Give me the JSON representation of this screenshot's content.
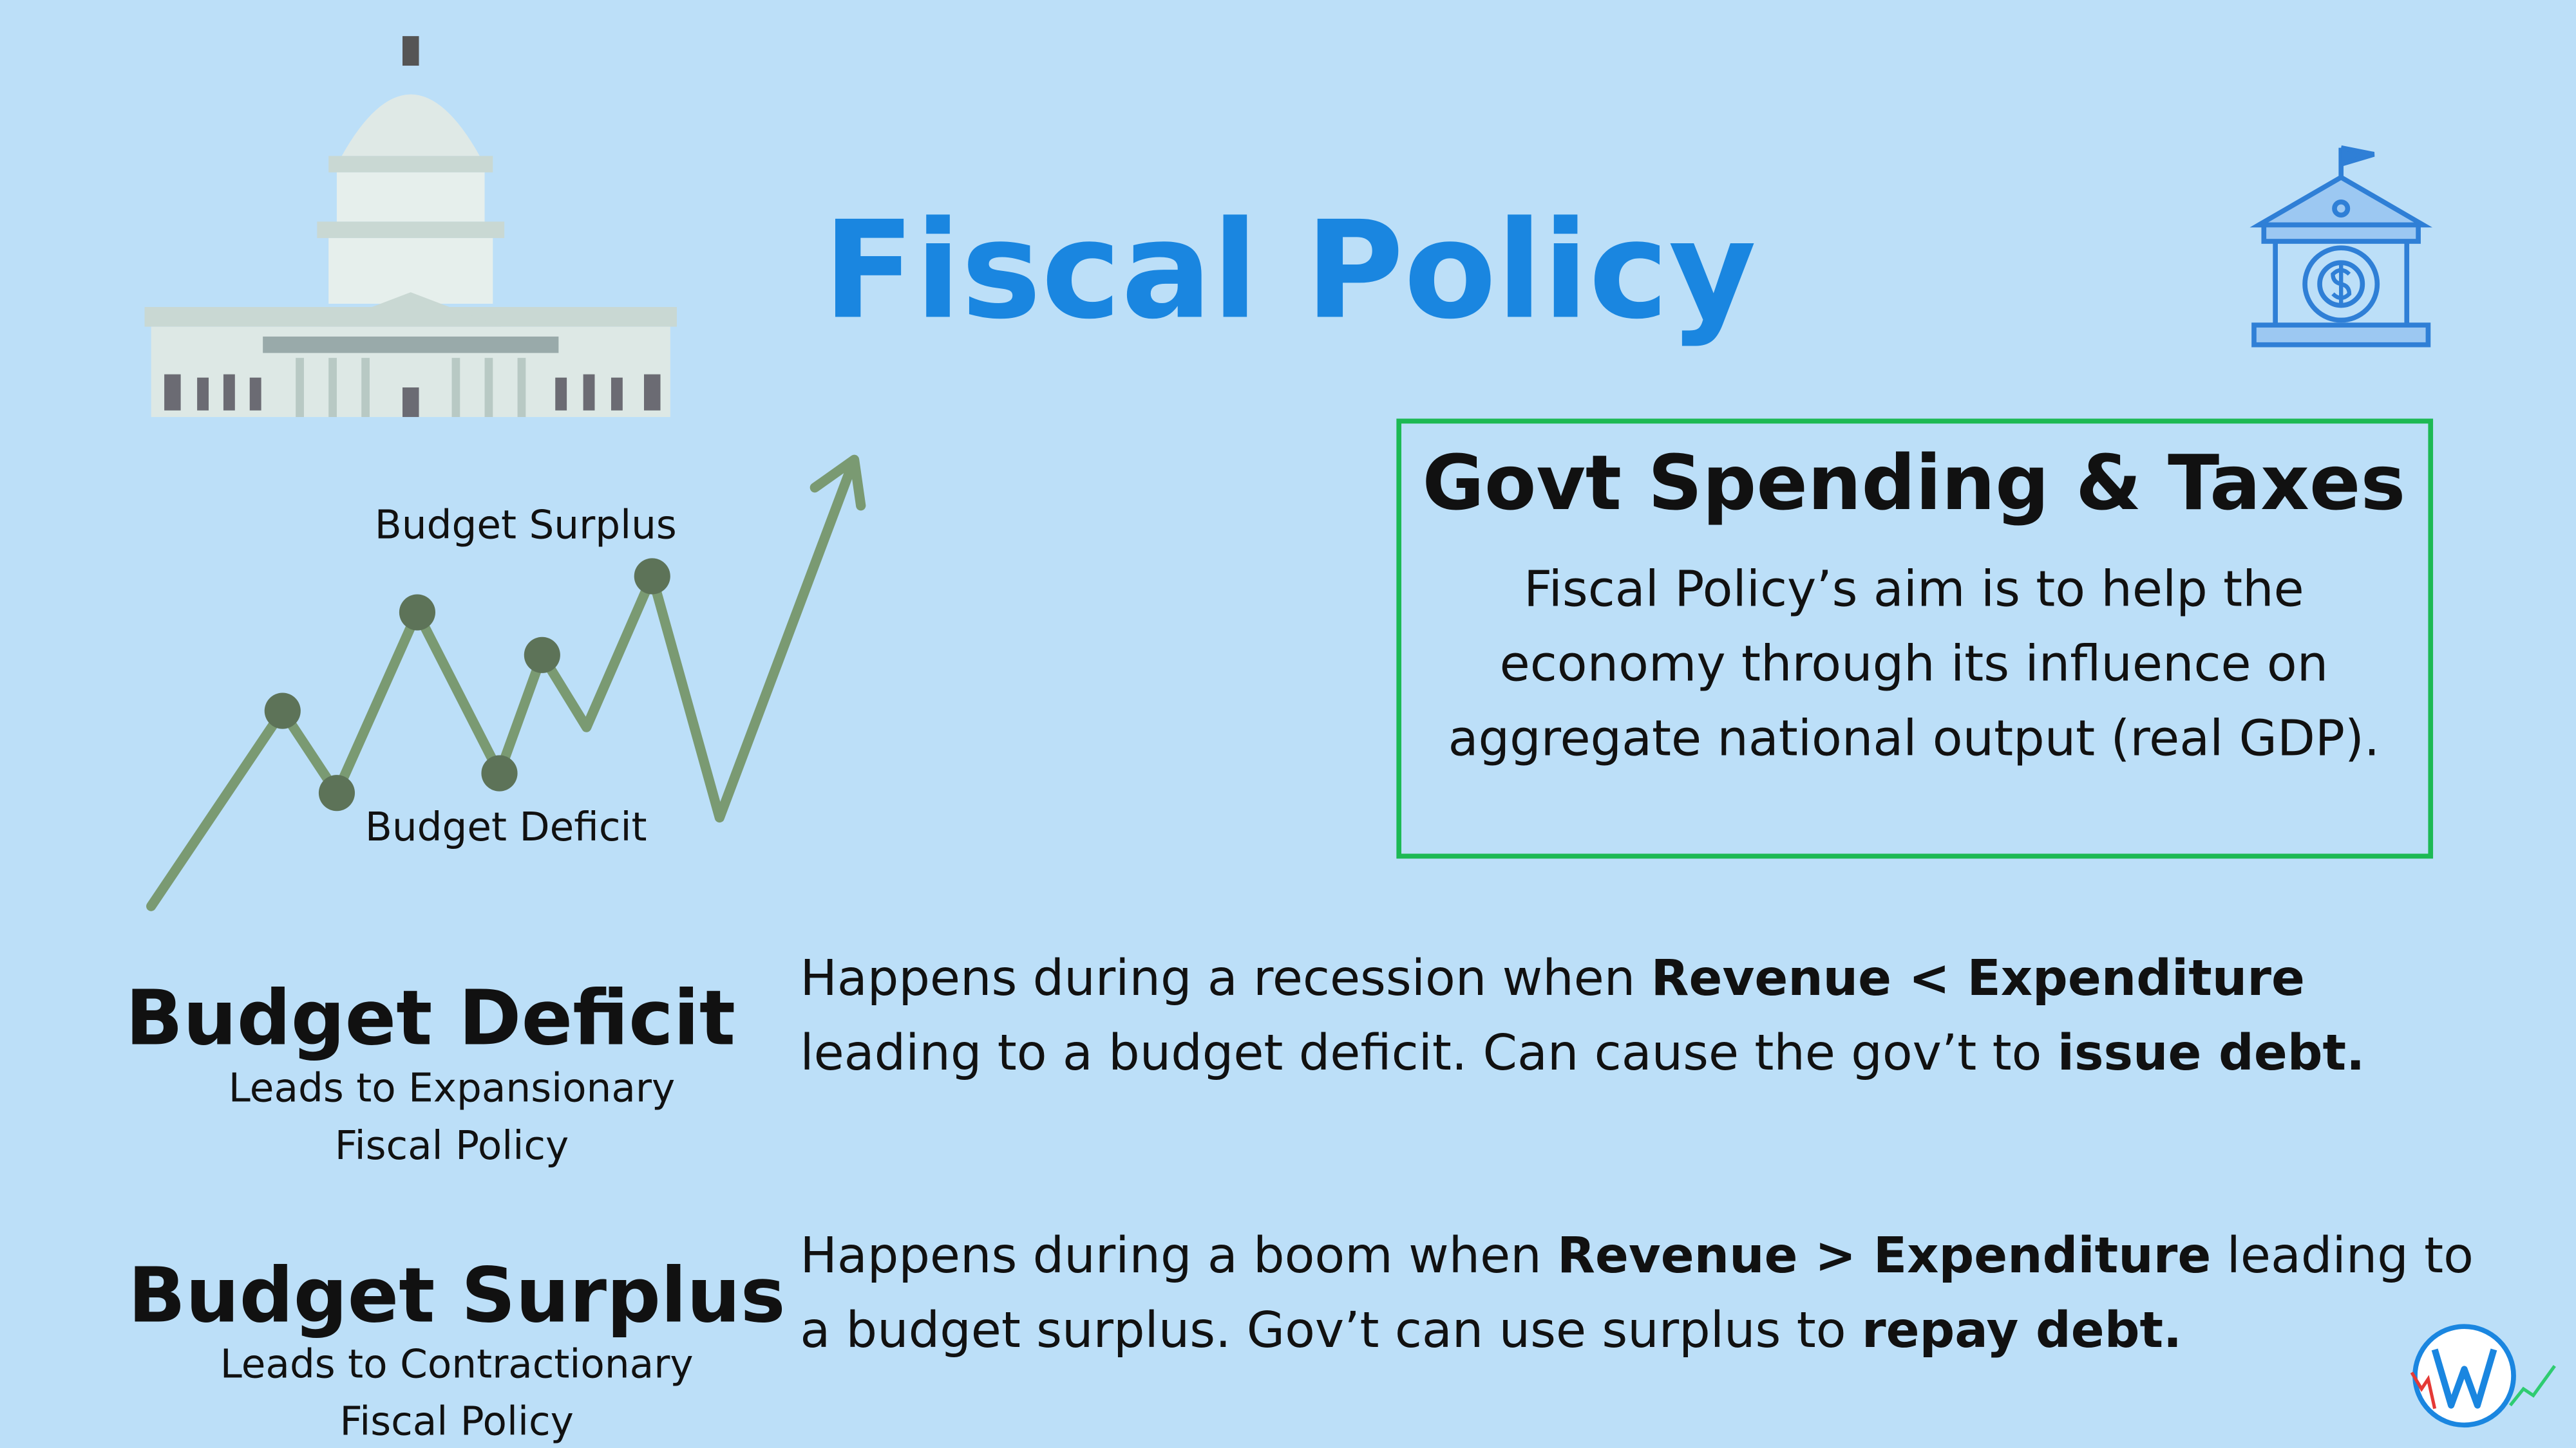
{
  "title": "Fiscal Policy",
  "illustration": {
    "top_label": "Budget Surplus",
    "bottom_label": "Budget Deficit"
  },
  "card": {
    "heading": "Govt Spending & Taxes",
    "lines": [
      "Fiscal Policy’s aim is to help the",
      "economy through its influence on",
      "aggregate national output (real GDP)."
    ]
  },
  "sections": [
    {
      "title": "Budget Deficit",
      "subtitle_lines": [
        "Leads to Expansionary",
        "Fiscal Policy"
      ],
      "description_lines": [
        [
          {
            "text": "Happens during a recession when "
          },
          {
            "text": "Revenue < Expenditure",
            "bold": true
          }
        ],
        [
          {
            "text": "leading to a budget deficit. Can cause the gov’t to "
          },
          {
            "text": "issue debt.",
            "bold": true
          }
        ]
      ]
    },
    {
      "title": "Budget Surplus",
      "subtitle_lines": [
        "Leads to Contractionary",
        "Fiscal Policy"
      ],
      "description_lines": [
        [
          {
            "text": "Happens during a boom when "
          },
          {
            "text": "Revenue > Expenditure",
            "bold": true
          },
          {
            "text": " leading to"
          }
        ],
        [
          {
            "text": "a budget surplus. Gov’t can use surplus to "
          },
          {
            "text": "repay debt.",
            "bold": true
          }
        ]
      ]
    }
  ]
}
